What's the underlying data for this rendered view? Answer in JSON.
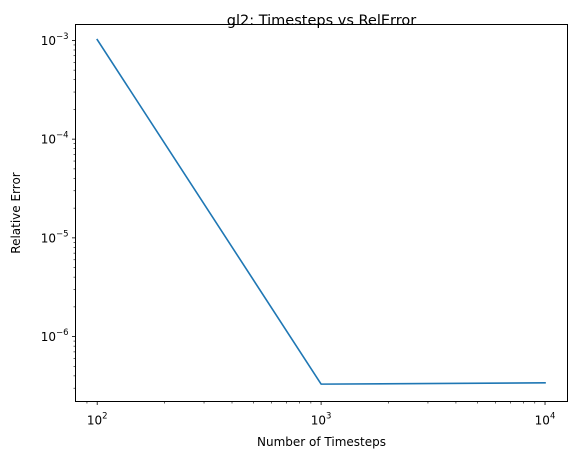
{
  "chart_data": {
    "type": "line",
    "title": "gl2: Timesteps vs RelError",
    "xlabel": "Number of Timesteps",
    "ylabel": "Relative Error",
    "xscale": "log",
    "yscale": "log",
    "xlim": [
      80,
      12600
    ],
    "ylim": [
      2.2e-07,
      0.00145
    ],
    "grid": false,
    "legend": "none",
    "x_ticks": [
      {
        "value": 100,
        "base": "10",
        "exp": "2"
      },
      {
        "value": 1000,
        "base": "10",
        "exp": "3"
      },
      {
        "value": 10000,
        "base": "10",
        "exp": "4"
      }
    ],
    "y_ticks": [
      {
        "value": 1e-06,
        "base": "10",
        "exp": "−6"
      },
      {
        "value": 1e-05,
        "base": "10",
        "exp": "−5"
      },
      {
        "value": 0.0001,
        "base": "10",
        "exp": "−4"
      },
      {
        "value": 0.001,
        "base": "10",
        "exp": "−3"
      }
    ],
    "series": [
      {
        "color": "#1f77b4",
        "x": [
          100,
          1000,
          10000
        ],
        "y": [
          0.00102,
          3.3e-07,
          3.4e-07
        ]
      }
    ]
  }
}
